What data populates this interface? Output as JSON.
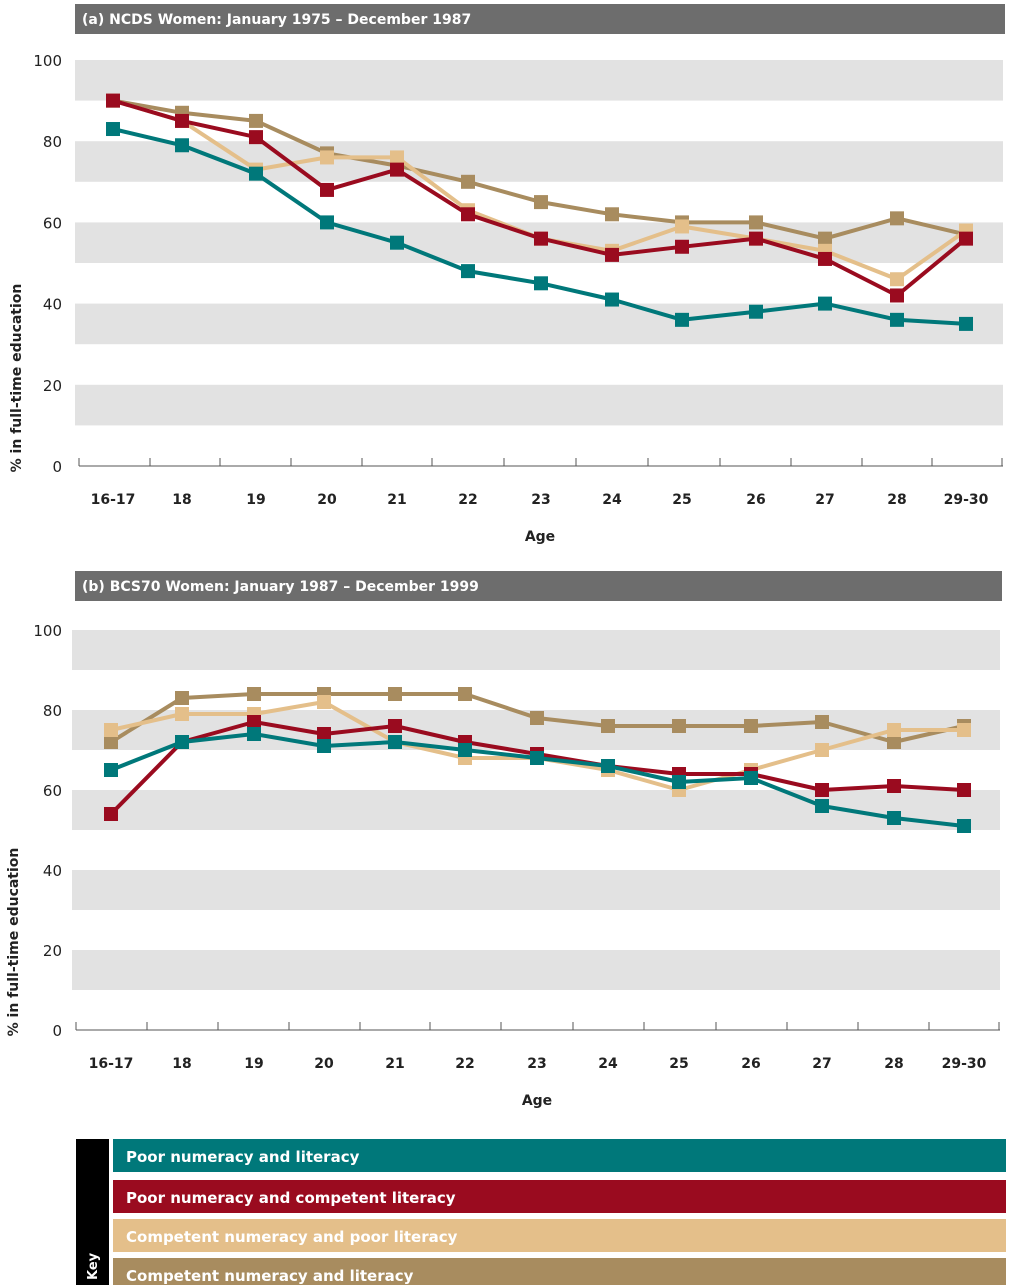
{
  "chart_data": [
    {
      "type": "line",
      "title": "(a) NCDS Women: January 1975 – December 1987",
      "xlabel": "Age",
      "ylabel": "% in full-time education",
      "ylim": [
        0,
        100
      ],
      "yticks": [
        0,
        20,
        40,
        60,
        80,
        100
      ],
      "grid": "alternating horizontal bands",
      "categories": [
        "16-17",
        "18",
        "19",
        "20",
        "21",
        "22",
        "23",
        "24",
        "25",
        "26",
        "27",
        "28",
        "29-30"
      ],
      "series": [
        {
          "name": "Competent numeracy and literacy",
          "color": "#a88c5f",
          "values": [
            90,
            87,
            85,
            77,
            74,
            70,
            65,
            62,
            60,
            60,
            56,
            61,
            57
          ]
        },
        {
          "name": "Competent numeracy and poor literacy",
          "color": "#e4bf8a",
          "values": [
            90,
            85,
            73,
            76,
            76,
            63,
            56,
            53,
            59,
            56,
            53,
            46,
            58
          ]
        },
        {
          "name": "Poor numeracy and competent literacy",
          "color": "#9a0b1f",
          "values": [
            90,
            85,
            81,
            68,
            73,
            62,
            56,
            52,
            54,
            56,
            51,
            42,
            56
          ]
        },
        {
          "name": "Poor numeracy and literacy",
          "color": "#00787a",
          "values": [
            83,
            79,
            72,
            60,
            55,
            48,
            45,
            41,
            36,
            38,
            40,
            36,
            35
          ]
        }
      ]
    },
    {
      "type": "line",
      "title": "(b) BCS70 Women: January 1987 – December 1999",
      "xlabel": "Age",
      "ylabel": "% in full-time education",
      "ylim": [
        0,
        100
      ],
      "yticks": [
        0,
        20,
        40,
        60,
        80,
        100
      ],
      "grid": "alternating horizontal bands",
      "categories": [
        "16-17",
        "18",
        "19",
        "20",
        "21",
        "22",
        "23",
        "24",
        "25",
        "26",
        "27",
        "28",
        "29-30"
      ],
      "series": [
        {
          "name": "Competent numeracy and literacy",
          "color": "#a88c5f",
          "values": [
            72,
            83,
            84,
            84,
            84,
            84,
            78,
            76,
            76,
            76,
            77,
            72,
            76
          ]
        },
        {
          "name": "Competent numeracy and poor literacy",
          "color": "#e4bf8a",
          "values": [
            75,
            79,
            79,
            82,
            72,
            68,
            68,
            65,
            60,
            65,
            70,
            75,
            75
          ]
        },
        {
          "name": "Poor numeracy and competent literacy",
          "color": "#9a0b1f",
          "values": [
            54,
            72,
            77,
            74,
            76,
            72,
            69,
            66,
            64,
            64,
            60,
            61,
            60
          ]
        },
        {
          "name": "Poor numeracy and literacy",
          "color": "#00787a",
          "values": [
            65,
            72,
            74,
            71,
            72,
            70,
            68,
            66,
            62,
            63,
            56,
            53,
            51
          ]
        }
      ]
    }
  ],
  "key": {
    "title": "Key",
    "items": [
      {
        "label": "Poor numeracy and literacy",
        "color": "#00787a"
      },
      {
        "label": "Poor numeracy and competent literacy",
        "color": "#9a0b1f"
      },
      {
        "label": "Competent numeracy and poor literacy",
        "color": "#e4bf8a"
      },
      {
        "label": "Competent numeracy and literacy",
        "color": "#a88c5f"
      }
    ]
  }
}
